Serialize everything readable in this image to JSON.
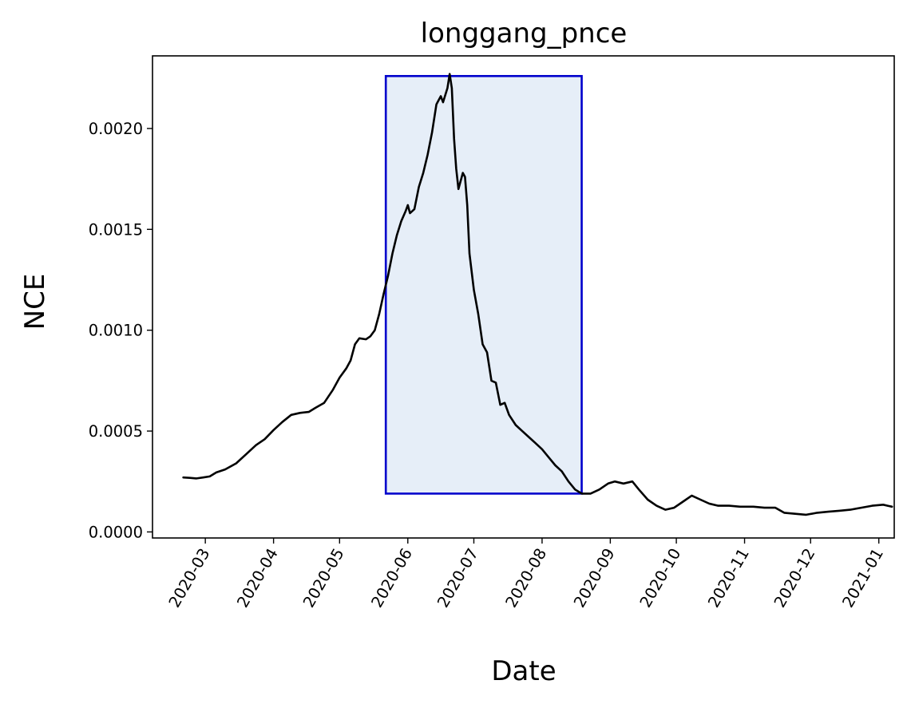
{
  "chart_data": {
    "type": "line",
    "title": "longgang_pnce",
    "xlabel": "Date",
    "ylabel": "NCE",
    "x_ticks": [
      "2020-03",
      "2020-04",
      "2020-05",
      "2020-06",
      "2020-07",
      "2020-08",
      "2020-09",
      "2020-10",
      "2020-11",
      "2020-12",
      "2021-01"
    ],
    "y_ticks": [
      "0.0000",
      "0.0005",
      "0.0010",
      "0.0015",
      "0.0020"
    ],
    "xlim": [
      "2020-02-06",
      "2021-01-08"
    ],
    "ylim": [
      -3e-05,
      0.00236
    ],
    "grid": false,
    "colors": {
      "line": "#000000",
      "highlight_edge": "#0000cc",
      "highlight_fill": "#e6eef8"
    },
    "highlight_region": {
      "x": [
        "2020-05-22",
        "2020-08-19"
      ],
      "y": [
        0.00019,
        0.00226
      ]
    },
    "series": [
      {
        "points": [
          [
            "2020-02-20",
            0.00027
          ],
          [
            "2020-02-23",
            0.000268
          ],
          [
            "2020-02-26",
            0.000265
          ],
          [
            "2020-02-29",
            0.00027
          ],
          [
            "2020-03-03",
            0.000275
          ],
          [
            "2020-03-06",
            0.000295
          ],
          [
            "2020-03-10",
            0.00031
          ],
          [
            "2020-03-15",
            0.00034
          ],
          [
            "2020-03-20",
            0.00039
          ],
          [
            "2020-03-24",
            0.00043
          ],
          [
            "2020-03-28",
            0.00046
          ],
          [
            "2020-04-01",
            0.000505
          ],
          [
            "2020-04-05",
            0.000545
          ],
          [
            "2020-04-09",
            0.00058
          ],
          [
            "2020-04-13",
            0.00059
          ],
          [
            "2020-04-17",
            0.000595
          ],
          [
            "2020-04-20",
            0.000615
          ],
          [
            "2020-04-24",
            0.00064
          ],
          [
            "2020-04-28",
            0.000705
          ],
          [
            "2020-05-01",
            0.000765
          ],
          [
            "2020-05-04",
            0.00081
          ],
          [
            "2020-05-06",
            0.00085
          ],
          [
            "2020-05-08",
            0.00093
          ],
          [
            "2020-05-10",
            0.00096
          ],
          [
            "2020-05-13",
            0.000955
          ],
          [
            "2020-05-15",
            0.00097
          ],
          [
            "2020-05-17",
            0.001
          ],
          [
            "2020-05-19",
            0.00108
          ],
          [
            "2020-05-21",
            0.00118
          ],
          [
            "2020-05-23",
            0.00127
          ],
          [
            "2020-05-25",
            0.00138
          ],
          [
            "2020-05-27",
            0.00147
          ],
          [
            "2020-05-29",
            0.00154
          ],
          [
            "2020-05-31",
            0.00159
          ],
          [
            "2020-06-01",
            0.00162
          ],
          [
            "2020-06-02",
            0.00158
          ],
          [
            "2020-06-04",
            0.0016
          ],
          [
            "2020-06-06",
            0.00171
          ],
          [
            "2020-06-08",
            0.00178
          ],
          [
            "2020-06-10",
            0.00187
          ],
          [
            "2020-06-12",
            0.00198
          ],
          [
            "2020-06-14",
            0.00212
          ],
          [
            "2020-06-16",
            0.00216
          ],
          [
            "2020-06-17",
            0.00213
          ],
          [
            "2020-06-19",
            0.0022
          ],
          [
            "2020-06-20",
            0.00227
          ],
          [
            "2020-06-21",
            0.0022
          ],
          [
            "2020-06-22",
            0.00195
          ],
          [
            "2020-06-23",
            0.0018
          ],
          [
            "2020-06-24",
            0.0017
          ],
          [
            "2020-06-26",
            0.00178
          ],
          [
            "2020-06-27",
            0.00176
          ],
          [
            "2020-06-28",
            0.00162
          ],
          [
            "2020-06-29",
            0.00138
          ],
          [
            "2020-07-01",
            0.0012
          ],
          [
            "2020-07-03",
            0.00108
          ],
          [
            "2020-07-05",
            0.00093
          ],
          [
            "2020-07-07",
            0.00089
          ],
          [
            "2020-07-09",
            0.00075
          ],
          [
            "2020-07-11",
            0.00074
          ],
          [
            "2020-07-13",
            0.00063
          ],
          [
            "2020-07-15",
            0.00064
          ],
          [
            "2020-07-17",
            0.00058
          ],
          [
            "2020-07-20",
            0.00053
          ],
          [
            "2020-07-23",
            0.0005
          ],
          [
            "2020-07-26",
            0.00047
          ],
          [
            "2020-07-29",
            0.00044
          ],
          [
            "2020-08-01",
            0.00041
          ],
          [
            "2020-08-04",
            0.00037
          ],
          [
            "2020-08-07",
            0.00033
          ],
          [
            "2020-08-10",
            0.0003
          ],
          [
            "2020-08-13",
            0.00025
          ],
          [
            "2020-08-16",
            0.00021
          ],
          [
            "2020-08-19",
            0.00019
          ],
          [
            "2020-08-23",
            0.00019
          ],
          [
            "2020-08-27",
            0.00021
          ],
          [
            "2020-08-31",
            0.00024
          ],
          [
            "2020-09-03",
            0.00025
          ],
          [
            "2020-09-07",
            0.00024
          ],
          [
            "2020-09-11",
            0.00025
          ],
          [
            "2020-09-14",
            0.00021
          ],
          [
            "2020-09-18",
            0.00016
          ],
          [
            "2020-09-22",
            0.00013
          ],
          [
            "2020-09-26",
            0.00011
          ],
          [
            "2020-09-30",
            0.00012
          ],
          [
            "2020-10-04",
            0.00015
          ],
          [
            "2020-10-08",
            0.00018
          ],
          [
            "2020-10-12",
            0.00016
          ],
          [
            "2020-10-16",
            0.00014
          ],
          [
            "2020-10-20",
            0.00013
          ],
          [
            "2020-10-25",
            0.00013
          ],
          [
            "2020-10-30",
            0.000125
          ],
          [
            "2020-11-05",
            0.000125
          ],
          [
            "2020-11-10",
            0.00012
          ],
          [
            "2020-11-15",
            0.00012
          ],
          [
            "2020-11-19",
            9.5e-05
          ],
          [
            "2020-11-24",
            9e-05
          ],
          [
            "2020-11-29",
            8.5e-05
          ],
          [
            "2020-12-04",
            9.5e-05
          ],
          [
            "2020-12-09",
            0.0001
          ],
          [
            "2020-12-14",
            0.000105
          ],
          [
            "2020-12-19",
            0.00011
          ],
          [
            "2020-12-24",
            0.00012
          ],
          [
            "2020-12-29",
            0.00013
          ],
          [
            "2021-01-03",
            0.000135
          ],
          [
            "2021-01-05",
            0.00013
          ],
          [
            "2021-01-07",
            0.000125
          ]
        ]
      }
    ]
  }
}
